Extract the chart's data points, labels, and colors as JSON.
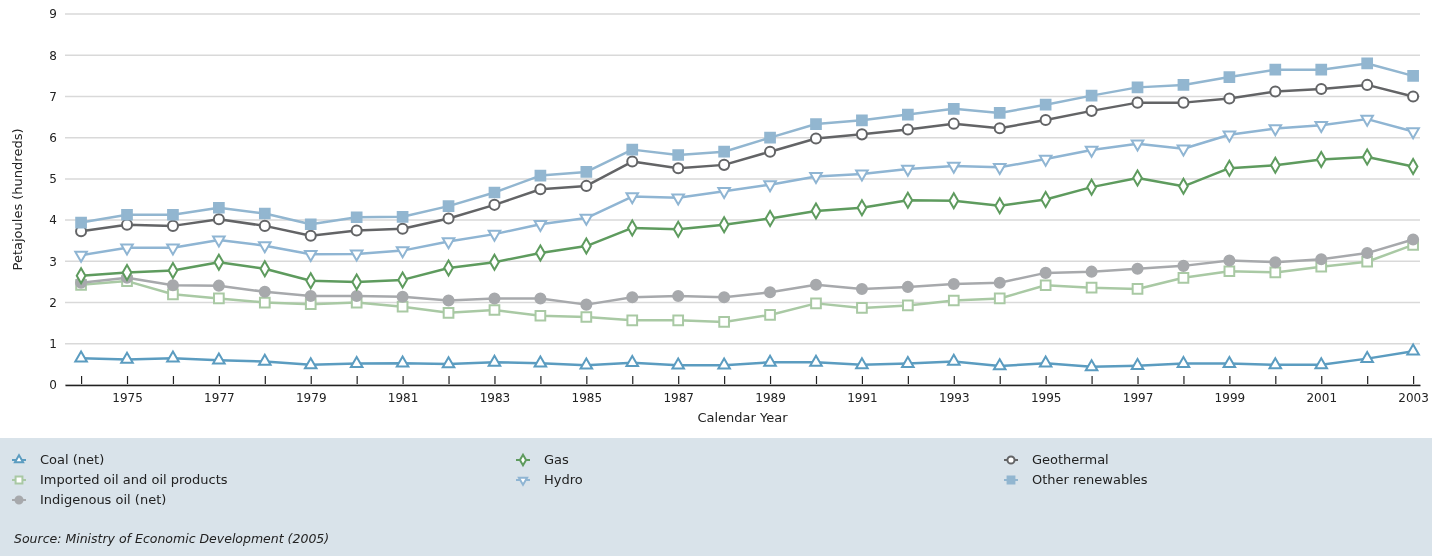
{
  "chart_data": {
    "type": "line",
    "xlabel": "Calendar Year",
    "ylabel": "Petajoules (hundreds)",
    "x": [
      1974,
      1975,
      1976,
      1977,
      1978,
      1979,
      1980,
      1981,
      1982,
      1983,
      1984,
      1985,
      1986,
      1987,
      1988,
      1989,
      1990,
      1991,
      1992,
      1993,
      1994,
      1995,
      1996,
      1997,
      1998,
      1999,
      2000,
      2001,
      2002,
      2003
    ],
    "xlim": [
      1973.65,
      2003.15
    ],
    "xticks": [
      {
        "value": 1974,
        "label": null
      },
      1975,
      {
        "value": 1976,
        "label": null
      },
      1977,
      {
        "value": 1978,
        "label": null
      },
      1979,
      {
        "value": 1980,
        "label": null
      },
      1981,
      {
        "value": 1982,
        "label": null
      },
      1983,
      {
        "value": 1984,
        "label": null
      },
      1985,
      {
        "value": 1986,
        "label": null
      },
      1987,
      {
        "value": 1988,
        "label": null
      },
      1989,
      {
        "value": 1990,
        "label": null
      },
      1991,
      {
        "value": 1992,
        "label": null
      },
      1993,
      {
        "value": 1994,
        "label": null
      },
      1995,
      {
        "value": 1996,
        "label": null
      },
      1997,
      {
        "value": 1998,
        "label": null
      },
      1999,
      {
        "value": 2000,
        "label": null
      },
      2001,
      {
        "value": 2002,
        "label": null
      },
      2003
    ],
    "ylim": [
      0,
      9
    ],
    "yticks": [
      0,
      1,
      2,
      3,
      4,
      5,
      6,
      7,
      8,
      9
    ],
    "grid": "y",
    "legend": "bottom",
    "line_style": "solid",
    "series": [
      {
        "name": "Coal (net)",
        "color": "#5b9cc0",
        "marker": "triangle",
        "values": [
          0.65,
          0.62,
          0.65,
          0.6,
          0.57,
          0.49,
          0.52,
          0.53,
          0.51,
          0.55,
          0.53,
          0.48,
          0.54,
          0.48,
          0.48,
          0.55,
          0.55,
          0.49,
          0.52,
          0.57,
          0.46,
          0.53,
          0.44,
          0.47,
          0.52,
          0.52,
          0.49,
          0.49,
          0.64,
          0.82
        ]
      },
      {
        "name": "Imported oil and oil products",
        "color": "#a9c9a4",
        "marker": "square",
        "values": [
          2.43,
          2.52,
          2.2,
          2.1,
          2.0,
          1.96,
          2.0,
          1.9,
          1.75,
          1.82,
          1.68,
          1.65,
          1.57,
          1.57,
          1.53,
          1.7,
          1.98,
          1.87,
          1.93,
          2.05,
          2.1,
          2.42,
          2.36,
          2.33,
          2.6,
          2.76,
          2.73,
          2.87,
          2.99,
          3.4
        ]
      },
      {
        "name": "Indigenous oil (net)",
        "color": "#a7a9ac",
        "marker": "circle",
        "values": [
          2.48,
          2.6,
          2.42,
          2.41,
          2.26,
          2.16,
          2.16,
          2.14,
          2.05,
          2.1,
          2.1,
          1.95,
          2.13,
          2.16,
          2.13,
          2.25,
          2.43,
          2.33,
          2.38,
          2.45,
          2.48,
          2.72,
          2.75,
          2.82,
          2.89,
          3.02,
          2.98,
          3.05,
          3.2,
          3.53
        ]
      },
      {
        "name": "Gas",
        "color": "#5e9b5e",
        "marker": "diamond",
        "values": [
          2.65,
          2.73,
          2.78,
          2.98,
          2.82,
          2.53,
          2.5,
          2.55,
          2.84,
          2.98,
          3.2,
          3.37,
          3.81,
          3.78,
          3.89,
          4.04,
          4.22,
          4.3,
          4.48,
          4.47,
          4.35,
          4.5,
          4.8,
          5.02,
          4.82,
          5.26,
          5.33,
          5.47,
          5.53,
          5.3
        ]
      },
      {
        "name": "Hydro",
        "color": "#8fb5d3",
        "marker": "triangle-down",
        "values": [
          3.15,
          3.33,
          3.33,
          3.52,
          3.38,
          3.17,
          3.18,
          3.26,
          3.48,
          3.66,
          3.9,
          4.05,
          4.57,
          4.54,
          4.7,
          4.86,
          5.06,
          5.12,
          5.24,
          5.31,
          5.28,
          5.48,
          5.7,
          5.85,
          5.73,
          6.07,
          6.22,
          6.3,
          6.45,
          6.15
        ]
      },
      {
        "name": "Geothermal",
        "color": "#636466",
        "marker": "circle",
        "values": [
          3.73,
          3.89,
          3.86,
          4.02,
          3.86,
          3.62,
          3.75,
          3.79,
          4.04,
          4.37,
          4.75,
          4.83,
          5.42,
          5.26,
          5.34,
          5.66,
          5.98,
          6.08,
          6.2,
          6.34,
          6.23,
          6.43,
          6.65,
          6.85,
          6.85,
          6.95,
          7.12,
          7.18,
          7.28,
          7.0
        ]
      },
      {
        "name": "Other renewables",
        "color": "#92b6d0",
        "marker": "square",
        "values": [
          3.94,
          4.13,
          4.13,
          4.3,
          4.16,
          3.9,
          4.07,
          4.08,
          4.34,
          4.67,
          5.08,
          5.17,
          5.71,
          5.58,
          5.66,
          6.0,
          6.33,
          6.42,
          6.56,
          6.7,
          6.6,
          6.8,
          7.02,
          7.22,
          7.28,
          7.47,
          7.65,
          7.65,
          7.8,
          7.5
        ]
      }
    ],
    "annotations": [
      "Source: Ministry of Economic Development (2005)"
    ]
  }
}
